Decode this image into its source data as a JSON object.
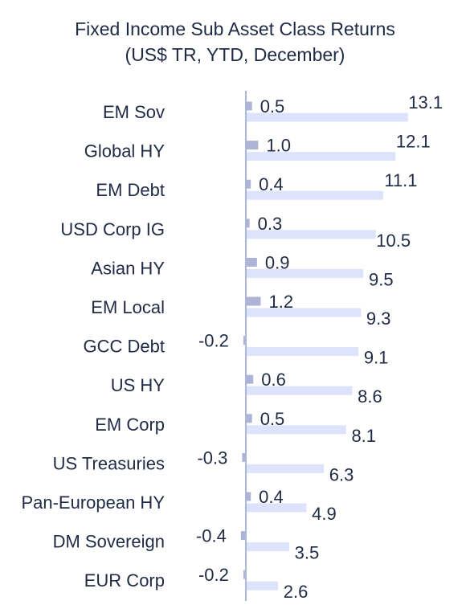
{
  "chart_data": {
    "type": "bar",
    "orientation": "horizontal",
    "title": "Fixed Income Sub Asset Class Returns",
    "subtitle": "(US$ TR, YTD, December)",
    "categories": [
      "EM Sov",
      "Global HY",
      "EM Debt",
      "USD Corp IG",
      "Asian HY",
      "EM Local",
      "GCC Debt",
      "US HY",
      "EM Corp",
      "US Treasuries",
      "Pan-European HY",
      "DM Sovereign",
      "EUR Corp"
    ],
    "series": [
      {
        "color": "#aeb4d6",
        "values": [
          0.5,
          1.0,
          0.4,
          0.3,
          0.9,
          1.2,
          -0.2,
          0.6,
          0.5,
          -0.3,
          0.4,
          -0.4,
          -0.2
        ],
        "labels": [
          "0.5",
          "1.0",
          "0.4",
          "0.3",
          "0.9",
          "1.2",
          "-0.2",
          "0.6",
          "0.5",
          "-0.3",
          "0.4",
          "-0.4",
          "-0.2"
        ]
      },
      {
        "color": "#dde3fb",
        "values": [
          13.1,
          12.1,
          11.1,
          10.5,
          9.5,
          9.3,
          9.1,
          8.6,
          8.1,
          6.3,
          4.9,
          3.5,
          2.6
        ],
        "labels": [
          "13.1",
          "12.1",
          "11.1",
          "10.5",
          "9.5",
          "9.3",
          "9.1",
          "8.6",
          "8.1",
          "6.3",
          "4.9",
          "3.5",
          "2.6"
        ]
      }
    ],
    "axis_color": "#aab7da",
    "grid": false,
    "legend": "none"
  }
}
